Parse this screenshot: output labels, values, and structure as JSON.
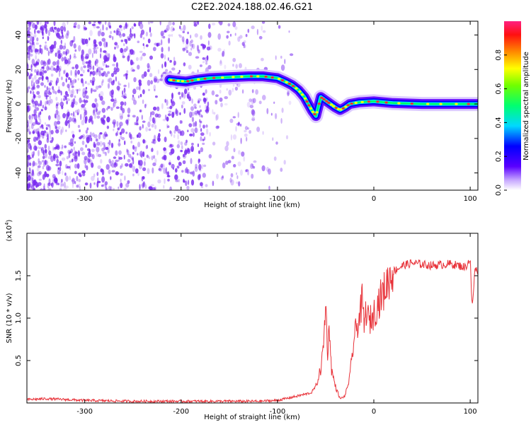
{
  "title": "C2E2.2024.188.02.46.G21",
  "colors": {
    "snr_line": "#e8333a",
    "ridge_core": "#ff3030",
    "scatter": "#7a2cf0"
  },
  "chart_data": [
    {
      "type": "heatmap",
      "xlabel": "Height of straight line (km)",
      "ylabel": "Frequency (Hz)",
      "xlim": [
        -360,
        108
      ],
      "ylim": [
        -50,
        48
      ],
      "xticks": [
        -300,
        -200,
        -100,
        0,
        100
      ],
      "xtick_labels": [
        "-300",
        "-200",
        "-100",
        "0",
        "100"
      ],
      "yticks": [
        40,
        20,
        0,
        -20,
        -40
      ],
      "ytick_labels": [
        "40",
        "20",
        "0",
        "-20",
        "-40"
      ],
      "ridge": {
        "x": [
          -212,
          -205,
          -195,
          -185,
          -170,
          -150,
          -130,
          -115,
          -100,
          -92,
          -85,
          -78,
          -72,
          -68,
          -64,
          -60,
          -55,
          -50,
          -45,
          -40,
          -35,
          -30,
          -25,
          -15,
          0,
          20,
          50,
          80,
          108
        ],
        "y": [
          14,
          13.5,
          13,
          14,
          15,
          15.5,
          16,
          16,
          15,
          13,
          11,
          8,
          4,
          0,
          -4,
          -7,
          4,
          2,
          0,
          -2,
          -3.5,
          -2,
          0,
          1,
          1.5,
          0.5,
          0,
          0,
          0
        ]
      },
      "colorbar": {
        "label": "Normalized spectral amplitude",
        "range": [
          0,
          1
        ],
        "ticks": [
          0,
          0.2,
          0.4,
          0.6,
          0.8
        ],
        "tick_labels": [
          "0.0",
          "0.2",
          "0.4",
          "0.6",
          "0.8"
        ]
      },
      "grid": false
    },
    {
      "type": "line",
      "xlabel": "Height of straight line (km)",
      "ylabel": "SNR (10 * v/v)",
      "scale_note": "(x10",
      "scale_exp": "4",
      "scale_close": ")",
      "xlim": [
        -360,
        108
      ],
      "ylim": [
        0,
        20000
      ],
      "xticks": [
        -300,
        -200,
        -100,
        0,
        100
      ],
      "xtick_labels": [
        "-300",
        "-200",
        "-100",
        "0",
        "100"
      ],
      "yticks": [
        5000,
        10000,
        15000
      ],
      "ytick_labels": [
        "0.5",
        "1.0",
        "1.5"
      ],
      "series": [
        {
          "x": [
            -360,
            -340,
            -300,
            -250,
            -200,
            -150,
            -120,
            -100,
            -80,
            -65,
            -60,
            -55,
            -52,
            -50,
            -48,
            -46,
            -44,
            -40,
            -35,
            -30,
            -25,
            -20,
            -15,
            -12,
            -10,
            -8,
            -5,
            0,
            5,
            10,
            15,
            20,
            30,
            40,
            60,
            80,
            95,
            100,
            102,
            105,
            108
          ],
          "y": [
            400,
            500,
            300,
            200,
            200,
            200,
            200,
            300,
            800,
            1200,
            2000,
            4000,
            7000,
            12000,
            6000,
            9000,
            4000,
            2000,
            500,
            800,
            3000,
            8000,
            10000,
            12000,
            9000,
            11000,
            9500,
            10500,
            12000,
            13000,
            14500,
            15500,
            16200,
            16500,
            16200,
            16400,
            16000,
            17000,
            11000,
            15800,
            15500
          ]
        }
      ],
      "grid": false
    }
  ]
}
